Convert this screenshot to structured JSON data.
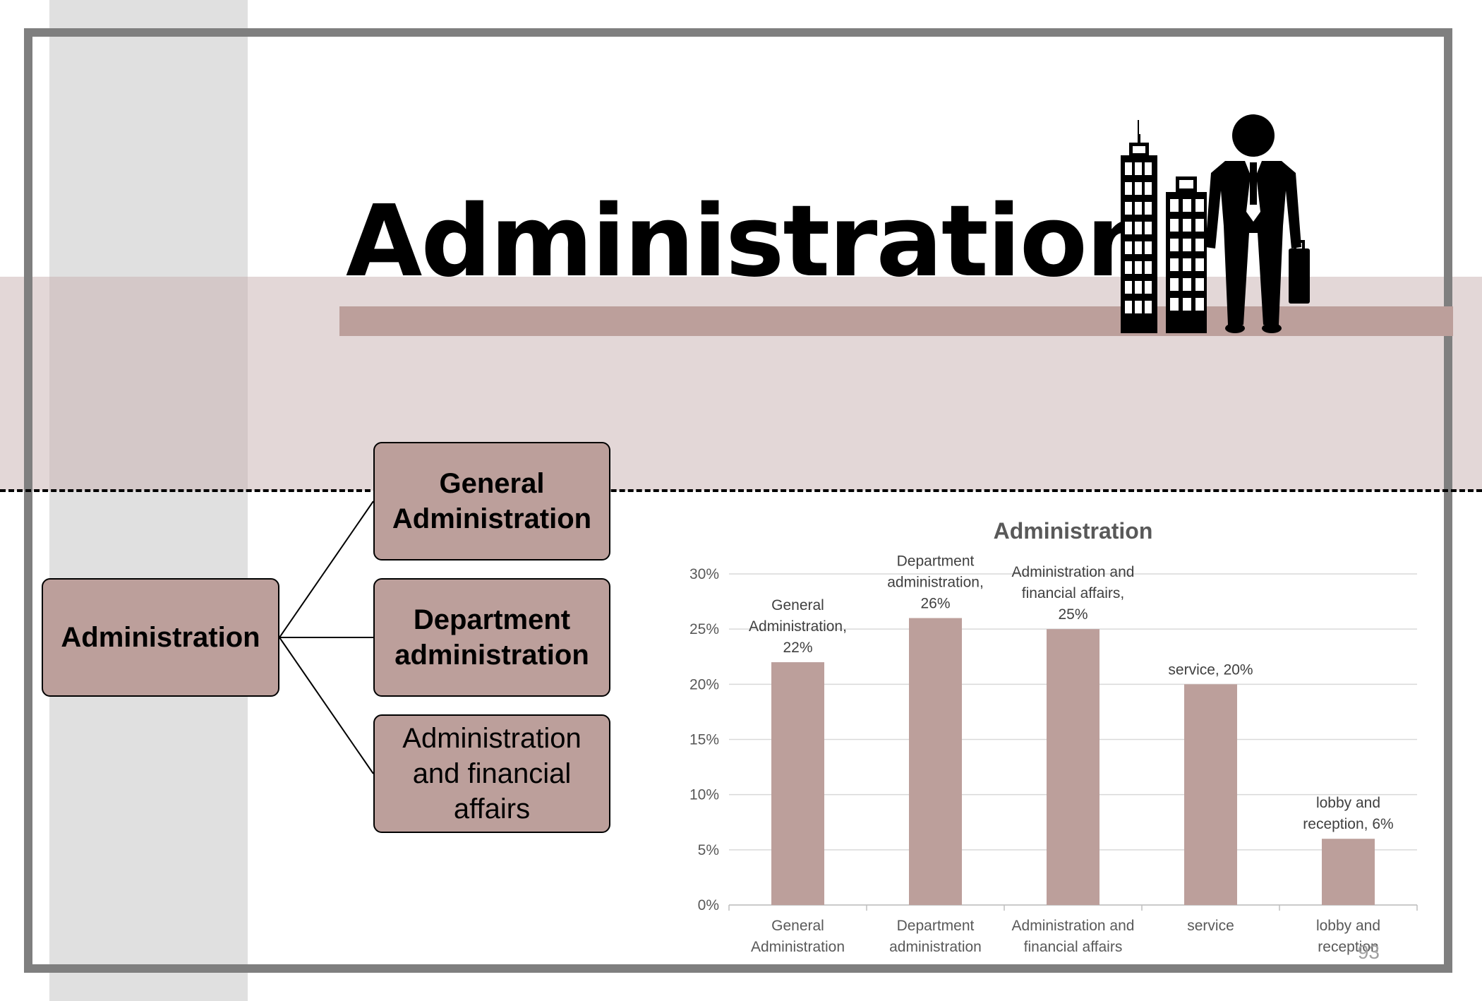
{
  "slide": {
    "title": "Administration",
    "page_number": "93"
  },
  "colors": {
    "accent": "#bc9f9b",
    "band": "#e0d5d3",
    "frame": "#7f7f7f",
    "sidebar": "#e0e0e0"
  },
  "icons": {
    "clipart": "businessman-with-buildings-icon"
  },
  "org_chart": {
    "root": "Administration",
    "children": [
      "General Administration",
      "Department administration",
      "Administration and financial affairs"
    ]
  },
  "chart_data": {
    "type": "bar",
    "title": "Administration",
    "categories": [
      "General Administration",
      "Department administration",
      "Administration and financial affairs",
      "service",
      "lobby and reception"
    ],
    "category_labels": [
      [
        "General",
        "Administration"
      ],
      [
        "Department",
        "administration"
      ],
      [
        "Administration and",
        "financial affairs"
      ],
      [
        "service"
      ],
      [
        "lobby and",
        "reception"
      ]
    ],
    "values": [
      22,
      26,
      25,
      20,
      6
    ],
    "data_labels": [
      [
        "General",
        "Administration,",
        "22%"
      ],
      [
        "Department",
        "administration,",
        "26%"
      ],
      [
        "Administration and",
        "financial affairs,",
        "25%"
      ],
      [
        "service, 20%"
      ],
      [
        "lobby and",
        "reception, 6%"
      ]
    ],
    "yticks": [
      "0%",
      "5%",
      "10%",
      "15%",
      "20%",
      "25%",
      "30%"
    ],
    "ylim": [
      0,
      30
    ],
    "grid": true,
    "bar_color": "#bc9f9b"
  }
}
